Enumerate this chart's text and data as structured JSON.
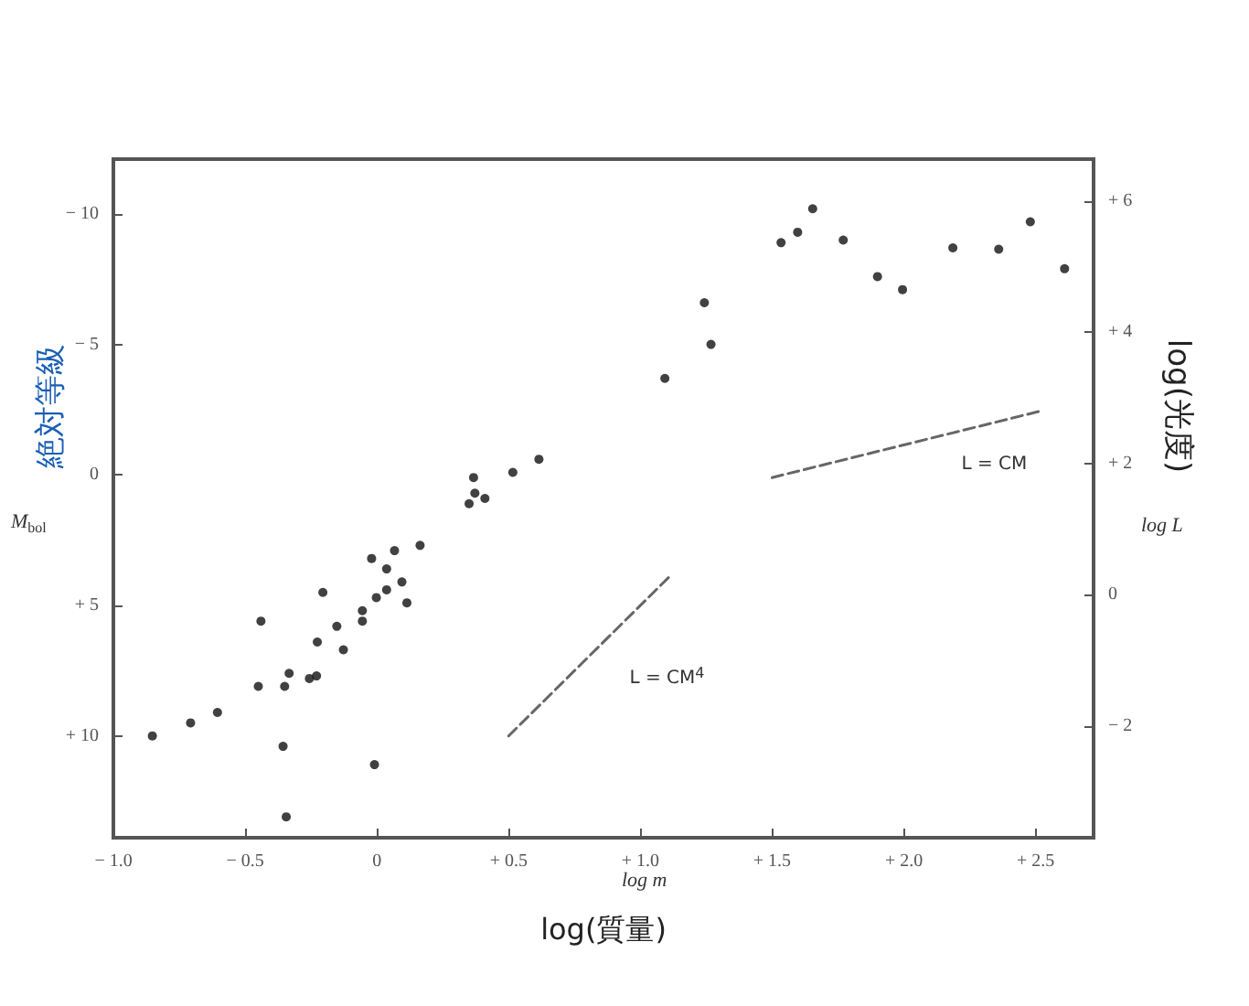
{
  "chart_data": {
    "type": "scatter",
    "xlabel": "log(質量)",
    "ylabel": "絶対等級",
    "y2label": "log(光度)",
    "annotations": [
      "M$_{bol}$",
      "log L",
      "log m"
    ],
    "xlim": [
      -1.0,
      2.72
    ],
    "ylim": [
      13.9,
      -12.1
    ],
    "y2lim": [
      -3.7,
      6.64
    ],
    "xticks": [
      {
        "value": -1.0,
        "label": "− 1.0"
      },
      {
        "value": -0.5,
        "label": "− 0.5"
      },
      {
        "value": 0,
        "label": "0"
      },
      {
        "value": 0.5,
        "label": "+ 0.5"
      },
      {
        "value": 1.0,
        "label": "+ 1.0"
      },
      {
        "value": 1.5,
        "label": "+ 1.5"
      },
      {
        "value": 2.0,
        "label": "+ 2.0"
      },
      {
        "value": 2.5,
        "label": "+ 2.5"
      }
    ],
    "yticks": [
      {
        "value": -10,
        "label": "− 10"
      },
      {
        "value": -5,
        "label": "− 5"
      },
      {
        "value": 0,
        "label": "0"
      },
      {
        "value": 5,
        "label": "+ 5"
      },
      {
        "value": 10,
        "label": "+ 10"
      }
    ],
    "y2ticks": [
      {
        "value": -2,
        "label": "− 2"
      },
      {
        "value": 0,
        "label": "0"
      },
      {
        "value": 2,
        "label": "+ 2"
      },
      {
        "value": 4,
        "label": "+ 4"
      },
      {
        "value": 6,
        "label": "+ 6"
      }
    ],
    "grid": false,
    "marker": "circle",
    "series": [
      {
        "color": "#111111",
        "x": [
          0.615,
          0.516,
          0.367,
          0.372,
          0.41,
          0.35,
          0.164,
          0.067,
          -0.02,
          0.037,
          0.095,
          0.114,
          -0.002,
          0.037,
          -0.205,
          -0.055,
          -0.055,
          -0.152,
          -0.226,
          -0.127,
          -0.44,
          -0.333,
          -0.229,
          -0.256,
          -0.35,
          -0.45,
          -0.605,
          -0.707,
          -0.852,
          -0.356,
          -0.009,
          -0.344,
          1.654,
          1.534,
          1.597,
          1.77,
          1.9,
          1.995,
          2.186,
          2.36,
          2.48,
          2.61,
          1.243,
          1.268,
          1.093
        ],
        "values": [
          -0.6,
          -0.1,
          0.1,
          0.7,
          0.9,
          1.1,
          2.7,
          2.9,
          3.2,
          3.6,
          4.1,
          4.9,
          4.7,
          4.4,
          4.5,
          5.2,
          5.6,
          5.8,
          6.4,
          6.7,
          5.6,
          7.6,
          7.7,
          7.8,
          8.1,
          8.1,
          9.1,
          9.5,
          10.0,
          10.4,
          11.1,
          13.1,
          -10.2,
          -8.9,
          -9.3,
          -9.0,
          -7.6,
          -7.1,
          -8.7,
          -8.65,
          -9.7,
          -7.9,
          -6.6,
          -5.0,
          -3.7
        ]
      },
      {
        "type": "line",
        "name": "L = CM$^{4}$",
        "color": "#666666",
        "line_style": "dashed",
        "marker": "none",
        "x": [
          0.5,
          1.12
        ],
        "values": [
          10.0,
          3.8
        ]
      },
      {
        "type": "line",
        "name": "L = CM",
        "color": "#666666",
        "line_style": "dashed",
        "marker": "none",
        "x": [
          1.5,
          2.52
        ],
        "values": [
          0.1,
          -2.45
        ]
      }
    ]
  }
}
